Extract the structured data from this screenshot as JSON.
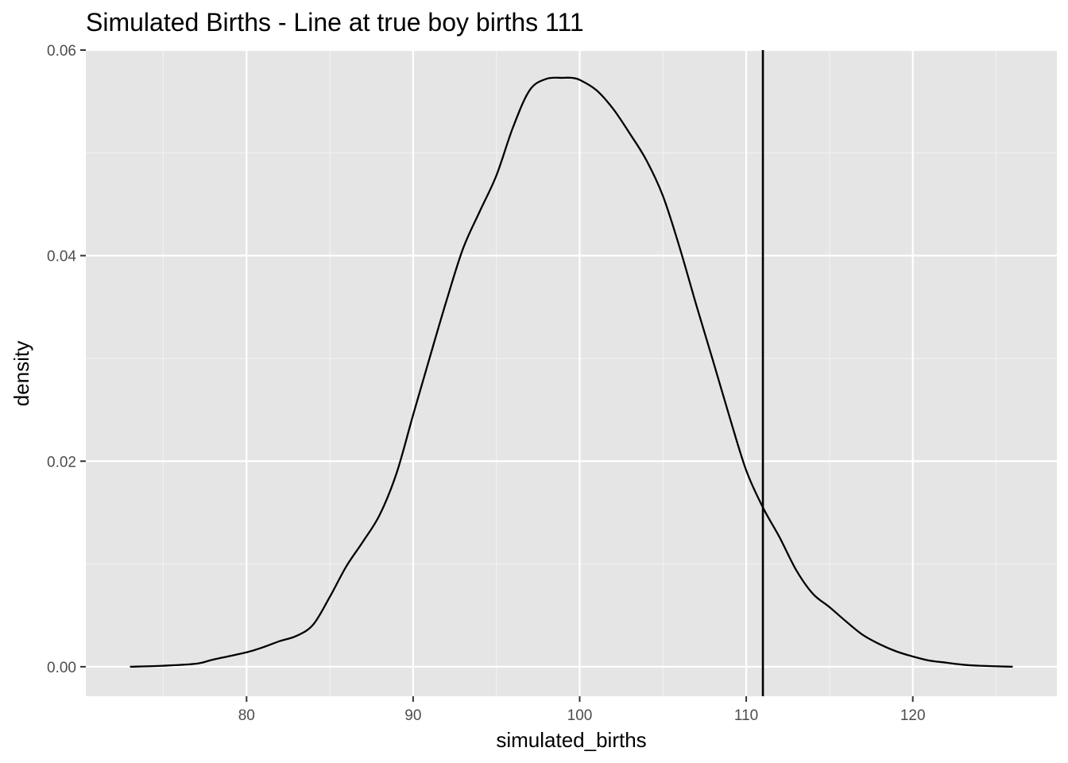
{
  "chart_data": {
    "type": "line",
    "subtype": "density",
    "title": "Simulated Births - Line at true boy births 111",
    "xlabel": "simulated_births",
    "ylabel": "density",
    "xlim": [
      70.35,
      128.65
    ],
    "ylim": [
      -0.00287,
      0.06
    ],
    "x_ticks": [
      80,
      90,
      100,
      110,
      120
    ],
    "x_tick_labels": [
      "80",
      "90",
      "100",
      "110",
      "120"
    ],
    "y_ticks": [
      0.0,
      0.02,
      0.04,
      0.06
    ],
    "y_tick_labels": [
      "0.00",
      "0.02",
      "0.04",
      "0.06"
    ],
    "grid": true,
    "vline": {
      "x": 111,
      "label": "true boy births"
    },
    "series": [
      {
        "x": [
          73,
          75,
          77,
          78,
          80,
          81,
          82,
          83,
          84,
          85,
          86,
          87,
          88,
          89,
          90,
          91,
          92,
          93,
          94,
          95,
          96,
          97,
          98,
          99,
          99.5,
          100,
          101,
          102,
          103,
          104,
          105,
          106,
          107,
          108,
          109,
          110,
          111,
          112,
          113,
          114,
          115,
          116,
          117,
          118,
          119,
          120,
          121,
          122,
          123,
          124,
          126
        ],
        "y": [
          0.0,
          0.0001,
          0.0003,
          0.0007,
          0.0014,
          0.0019,
          0.0025,
          0.003,
          0.0041,
          0.0068,
          0.0098,
          0.0122,
          0.0148,
          0.0188,
          0.0245,
          0.0301,
          0.0356,
          0.0407,
          0.0443,
          0.0478,
          0.0525,
          0.0561,
          0.0572,
          0.0573,
          0.0573,
          0.0571,
          0.0561,
          0.0543,
          0.0519,
          0.0493,
          0.0458,
          0.0408,
          0.0352,
          0.0298,
          0.0243,
          0.0191,
          0.0155,
          0.0126,
          0.0094,
          0.0071,
          0.0058,
          0.0044,
          0.0031,
          0.0022,
          0.0015,
          0.001,
          0.0006,
          0.0004,
          0.0002,
          0.0001,
          0.0
        ]
      }
    ]
  }
}
